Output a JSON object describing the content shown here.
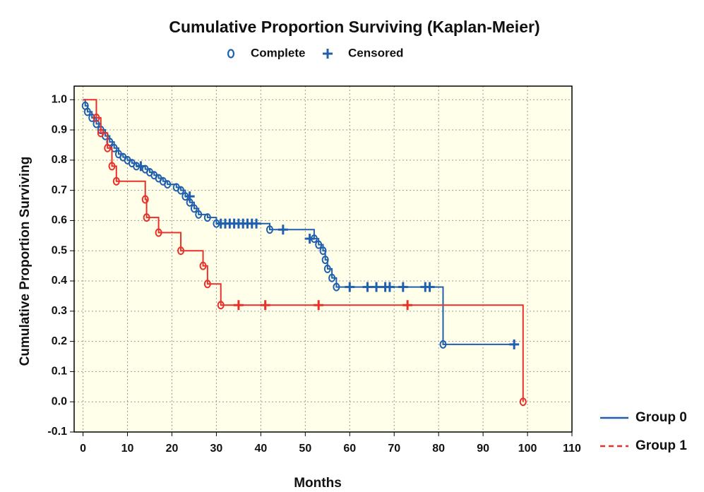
{
  "chart_data": {
    "type": "survival",
    "title": "Cumulative Proportion Surviving (Kaplan-Meier)",
    "marker_legend": [
      "Complete",
      "Censored"
    ],
    "marker_color": "#1f5fae",
    "xlabel": "Months",
    "ylabel": "Cumulative Proportion Surviving",
    "xlim": [
      -2,
      110
    ],
    "ylim": [
      -0.1,
      1.045
    ],
    "xticks": [
      0,
      10,
      20,
      30,
      40,
      50,
      60,
      70,
      80,
      90,
      100,
      110
    ],
    "yticks": [
      {
        "value": 1.0,
        "label": "1.0"
      },
      0.9,
      0.8,
      0.7,
      0.6,
      0.5,
      0.4,
      0.3,
      0.2,
      0.1,
      {
        "value": 0.0,
        "label": "0.0"
      },
      -0.1
    ],
    "grid": true,
    "background": "#ffffea",
    "series": [
      {
        "name": "Group 0",
        "color": "#1f5fae",
        "legend_style": "solid",
        "x": [
          0,
          0.5,
          1,
          2,
          3,
          4,
          5,
          6,
          7,
          8,
          9,
          10,
          11,
          12,
          14,
          15,
          16,
          17,
          18,
          19,
          21,
          22,
          23,
          24,
          25,
          26,
          28,
          30,
          42,
          52,
          53,
          54,
          54.5,
          55,
          56,
          57,
          81
        ],
        "values": [
          1.0,
          0.98,
          0.96,
          0.94,
          0.92,
          0.9,
          0.88,
          0.86,
          0.84,
          0.82,
          0.81,
          0.8,
          0.79,
          0.78,
          0.77,
          0.76,
          0.75,
          0.74,
          0.73,
          0.72,
          0.71,
          0.7,
          0.68,
          0.66,
          0.64,
          0.62,
          0.61,
          0.59,
          0.57,
          0.54,
          0.52,
          0.5,
          0.47,
          0.44,
          0.41,
          0.38,
          0.19
        ],
        "censored": {
          "x": [
            13,
            24,
            31,
            32,
            33,
            34,
            35,
            36,
            37,
            38,
            39,
            45,
            51,
            60,
            64,
            66,
            68,
            69,
            72,
            77,
            78,
            97
          ],
          "values": [
            0.78,
            0.68,
            0.59,
            0.59,
            0.59,
            0.59,
            0.59,
            0.59,
            0.59,
            0.59,
            0.59,
            0.57,
            0.54,
            0.38,
            0.38,
            0.38,
            0.38,
            0.38,
            0.38,
            0.38,
            0.38,
            0.19
          ]
        }
      },
      {
        "name": "Group 1",
        "color": "#e8312a",
        "legend_style": "dashed",
        "x": [
          0,
          3,
          4,
          5.5,
          6.5,
          7.5,
          14,
          14.3,
          17,
          22,
          27,
          28,
          31,
          99
        ],
        "values": [
          1.0,
          0.94,
          0.89,
          0.84,
          0.78,
          0.73,
          0.67,
          0.61,
          0.56,
          0.5,
          0.45,
          0.39,
          0.32,
          0.0
        ],
        "censored": {
          "x": [
            35,
            41,
            53,
            73
          ],
          "values": [
            0.32,
            0.32,
            0.32,
            0.32
          ]
        }
      }
    ]
  }
}
